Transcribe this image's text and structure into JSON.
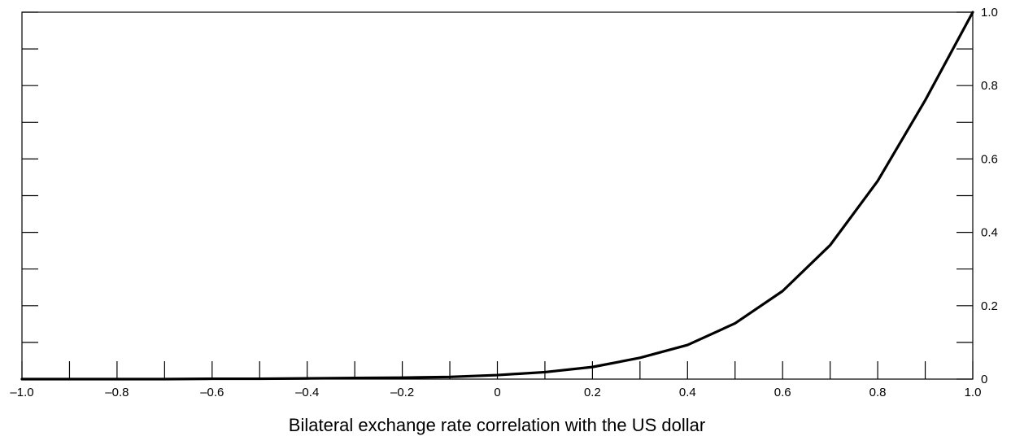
{
  "chart_data": {
    "type": "line",
    "title": "",
    "xlabel": "Bilateral exchange rate correlation with the US dollar",
    "ylabel": "",
    "xlim": [
      -1.0,
      1.0
    ],
    "ylim": [
      0,
      1.0
    ],
    "x_ticks": [
      -1.0,
      -0.9,
      -0.8,
      -0.7,
      -0.6,
      -0.5,
      -0.4,
      -0.3,
      -0.2,
      -0.1,
      0,
      0.1,
      0.2,
      0.3,
      0.4,
      0.5,
      0.6,
      0.7,
      0.8,
      0.9,
      1.0
    ],
    "x_tick_labels": [
      {
        "value": -1.0,
        "label": "–1.0"
      },
      {
        "value": -0.8,
        "label": "–0.8"
      },
      {
        "value": -0.6,
        "label": "–0.6"
      },
      {
        "value": -0.4,
        "label": "–0.4"
      },
      {
        "value": -0.2,
        "label": "–0.2"
      },
      {
        "value": 0,
        "label": "0"
      },
      {
        "value": 0.2,
        "label": "0.2"
      },
      {
        "value": 0.4,
        "label": "0.4"
      },
      {
        "value": 0.6,
        "label": "0.6"
      },
      {
        "value": 0.8,
        "label": "0.8"
      },
      {
        "value": 1.0,
        "label": "1.0"
      }
    ],
    "y_ticks": [
      0,
      0.1,
      0.2,
      0.3,
      0.4,
      0.5,
      0.6,
      0.7,
      0.8,
      0.9,
      1.0
    ],
    "y_tick_labels": [
      {
        "value": 0,
        "label": "0"
      },
      {
        "value": 0.2,
        "label": "0.2"
      },
      {
        "value": 0.4,
        "label": "0.4"
      },
      {
        "value": 0.6,
        "label": "0.6"
      },
      {
        "value": 0.8,
        "label": "0.8"
      },
      {
        "value": 1.0,
        "label": "1.0"
      }
    ],
    "y_axis_side": "right",
    "grid": false,
    "series": [
      {
        "x": [
          -1.0,
          -0.9,
          -0.8,
          -0.7,
          -0.6,
          -0.5,
          -0.4,
          -0.3,
          -0.2,
          -0.1,
          0,
          0.1,
          0.2,
          0.3,
          0.4,
          0.5,
          0.6,
          0.7,
          0.8,
          0.9,
          1.0
        ],
        "y": [
          0,
          0,
          0,
          0,
          0.001,
          0.001,
          0.002,
          0.003,
          0.004,
          0.006,
          0.011,
          0.019,
          0.033,
          0.058,
          0.093,
          0.152,
          0.24,
          0.365,
          0.54,
          0.76,
          1.0
        ]
      }
    ]
  },
  "colors": {
    "line": "#000000",
    "axis": "#000000",
    "background": "#ffffff"
  }
}
